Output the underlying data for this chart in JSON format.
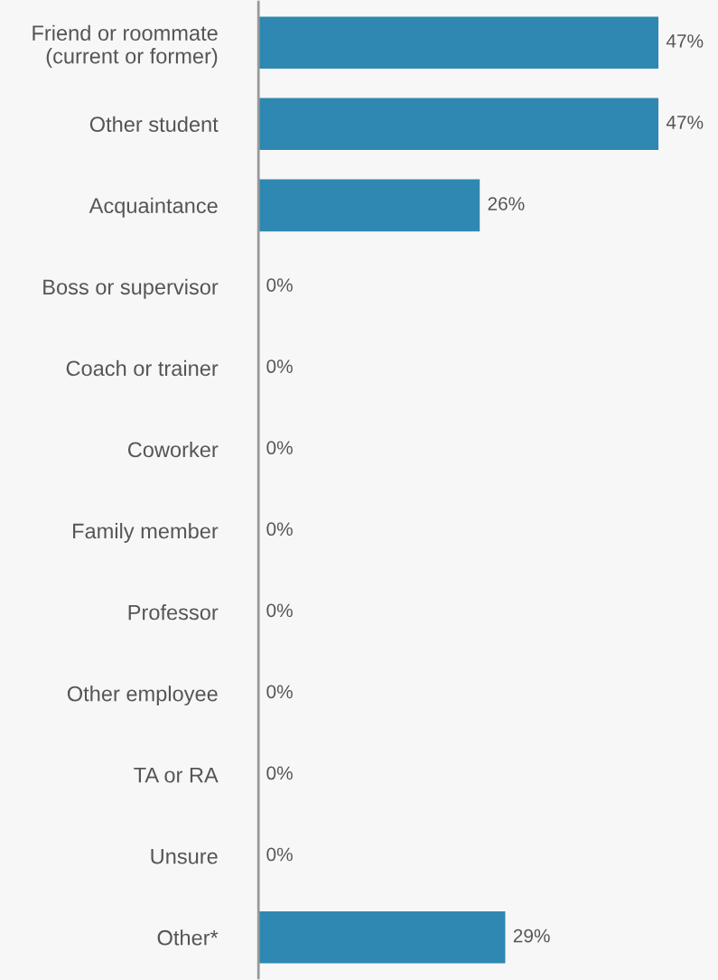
{
  "chart_data": {
    "type": "bar",
    "orientation": "horizontal",
    "categories": [
      "Friend or roommate\n(current or former)",
      "Other student",
      "Acquaintance",
      "Boss or supervisor",
      "Coach or trainer",
      "Coworker",
      "Family member",
      "Professor",
      "Other employee",
      "TA or RA",
      "Unsure",
      "Other*"
    ],
    "values": [
      47,
      47,
      26,
      0,
      0,
      0,
      0,
      0,
      0,
      0,
      0,
      29
    ],
    "value_labels": [
      "47%",
      "47%",
      "26%",
      "0%",
      "0%",
      "0%",
      "0%",
      "0%",
      "0%",
      "0%",
      "0%",
      "29%"
    ],
    "color": "#2e88b1",
    "xlim": [
      0,
      54
    ],
    "tick_labels": "y",
    "grid": false,
    "legend": false
  }
}
